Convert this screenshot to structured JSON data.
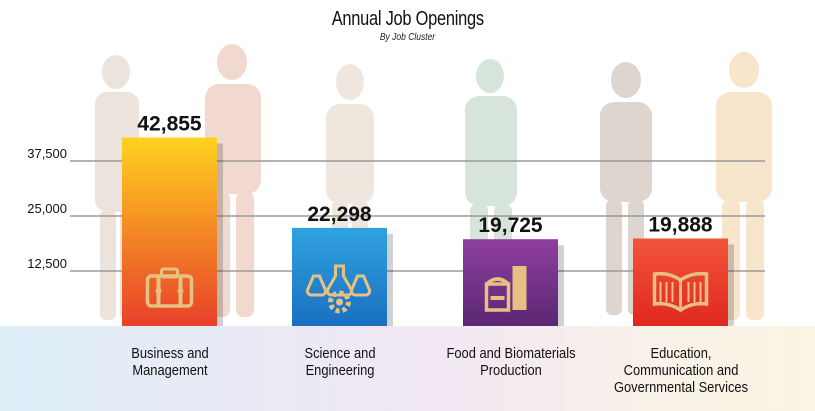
{
  "chart_data": {
    "type": "bar",
    "title": "Annual Job Openings",
    "subtitle": "By Job Cluster",
    "categories": [
      "Business and Management",
      "Science and Engineering",
      "Food and Biomaterials Production",
      "Education, Communication and Governmental Services"
    ],
    "category_label_lines": [
      [
        "Business and",
        "Management"
      ],
      [
        "Science and",
        "Engineering"
      ],
      [
        "Food and Biomaterials",
        "Production"
      ],
      [
        "Education,",
        "Communication and",
        "Governmental Services"
      ]
    ],
    "values": [
      42855,
      22298,
      19725,
      19888
    ],
    "value_labels": [
      "42,855",
      "22,298",
      "19,725",
      "19,888"
    ],
    "yticks": [
      12500,
      25000,
      37500
    ],
    "ytick_labels": [
      "12,500",
      "25,000",
      "37,500"
    ],
    "ylim": [
      0,
      45000
    ],
    "grid": true,
    "bar_icons": [
      "briefcase-icon",
      "lab-flasks-gear-icon",
      "grain-storage-icon",
      "open-book-icon"
    ],
    "bar_colors": [
      {
        "top": "#ffd21f",
        "bottom": "#e8402a"
      },
      {
        "top": "#2fa3e0",
        "bottom": "#1a6fc0"
      },
      {
        "top": "#8e3fa0",
        "bottom": "#5b2773"
      },
      {
        "top": "#f2553a",
        "bottom": "#e0281f"
      }
    ],
    "icon_color": "#e7c184"
  }
}
